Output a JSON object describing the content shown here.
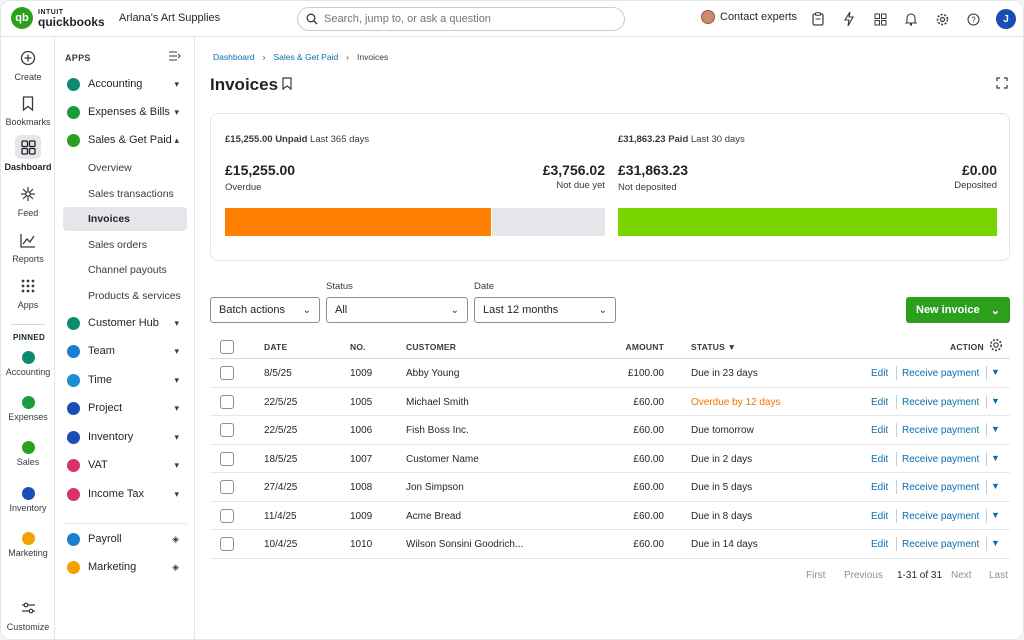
{
  "header": {
    "logo_intuit": "INTUIT",
    "logo_name": "quickbooks",
    "logo_mark": "qb",
    "company": "Arlana's Art Supplies",
    "search_placeholder": "Search, jump to, or ask a question",
    "contact": "Contact experts",
    "user_initial": "J",
    "icons": [
      "clipboard-icon",
      "lightning-icon",
      "apps-icon",
      "bell-icon",
      "gear-icon",
      "help-icon"
    ]
  },
  "rail": {
    "items": [
      {
        "label": "Create",
        "icon": "plus-circle-icon"
      },
      {
        "label": "Bookmarks",
        "icon": "bookmark-icon"
      },
      {
        "label": "Dashboard",
        "icon": "dashboard-icon"
      },
      {
        "label": "Feed",
        "icon": "feed-icon"
      },
      {
        "label": "Reports",
        "icon": "reports-icon"
      },
      {
        "label": "Apps",
        "icon": "apps-grid-icon"
      }
    ],
    "pinned_label": "PINNED",
    "pinned": [
      {
        "label": "Accounting",
        "color": "#0e8a72"
      },
      {
        "label": "Expenses",
        "color": "#1a9c3e"
      },
      {
        "label": "Sales",
        "color": "#2ca01c"
      },
      {
        "label": "Inventory",
        "color": "#1a4eb6"
      },
      {
        "label": "Marketing",
        "color": "#f2a100"
      }
    ],
    "customize": "Customize"
  },
  "appnav": {
    "heading": "APPS",
    "items": [
      {
        "label": "Accounting",
        "color": "#0e8a72"
      },
      {
        "label": "Expenses & Bills",
        "color": "#1a9c3e"
      },
      {
        "label": "Sales & Get Paid",
        "color": "#2ca01c"
      }
    ],
    "sub_items": [
      "Overview",
      "Sales transactions",
      "Invoices",
      "Sales orders",
      "Channel payouts",
      "Products & services"
    ],
    "active_sub": "Invoices",
    "items2": [
      {
        "label": "Customer Hub",
        "color": "#0e8a72"
      },
      {
        "label": "Team",
        "color": "#1a7fd1"
      },
      {
        "label": "Time",
        "color": "#1a8fd1"
      },
      {
        "label": "Project",
        "color": "#1a4eb6"
      },
      {
        "label": "Inventory",
        "color": "#1a4eb6"
      },
      {
        "label": "VAT",
        "color": "#d6336c"
      },
      {
        "label": "Income Tax",
        "color": "#d6336c"
      }
    ],
    "items3": [
      {
        "label": "Payroll",
        "color": "#1a7fd1"
      },
      {
        "label": "Marketing",
        "color": "#f2a100"
      }
    ]
  },
  "main": {
    "breadcrumb": [
      "Dashboard",
      "Sales & Get Paid",
      "Invoices"
    ],
    "title": "Invoices",
    "summary": {
      "unpaid_amount": "£15,255.00",
      "unpaid_label": "Unpaid",
      "unpaid_period": "Last 365 days",
      "overdue_amount": "£15,255.00",
      "overdue_label": "Overdue",
      "notdue_amount": "£3,756.02",
      "notdue_label": "Not due yet",
      "paid_amount": "£31,863.23",
      "paid_label": "Paid",
      "paid_period": "Last 30 days",
      "notdeposited_amount": "£31,863.23",
      "notdeposited_label": "Not deposited",
      "deposited_amount": "£0.00",
      "deposited_label": "Deposited",
      "colors": {
        "overdue": "#ff8000",
        "notdue": "#e4e6ea",
        "paid": "#7ad400"
      }
    },
    "filters": {
      "batch_actions": "Batch actions",
      "status_label": "Status",
      "status_value": "All",
      "date_label": "Date",
      "date_value": "Last 12 months",
      "new_invoice": "New invoice"
    },
    "table": {
      "columns": [
        "DATE",
        "NO.",
        "CUSTOMER",
        "AMOUNT",
        "STATUS",
        "ACTION"
      ],
      "rows": [
        {
          "date": "8/5/25",
          "no": "1009",
          "customer": "Abby Young",
          "amount": "£100.00",
          "status": "Due in 23 days",
          "overdue": false
        },
        {
          "date": "22/5/25",
          "no": "1005",
          "customer": "Michael Smith",
          "amount": "£60.00",
          "status": "Overdue by 12 days",
          "overdue": true
        },
        {
          "date": "22/5/25",
          "no": "1006",
          "customer": "Fish Boss Inc.",
          "amount": "£60.00",
          "status": "Due tomorrow",
          "overdue": false
        },
        {
          "date": "18/5/25",
          "no": "1007",
          "customer": "Customer Name",
          "amount": "£60.00",
          "status": "Due in 2 days",
          "overdue": false
        },
        {
          "date": "27/4/25",
          "no": "1008",
          "customer": "Jon Simpson",
          "amount": "£60.00",
          "status": "Due in 5 days",
          "overdue": false
        },
        {
          "date": "11/4/25",
          "no": "1009",
          "customer": "Acme Bread",
          "amount": "£60.00",
          "status": "Due in 8 days",
          "overdue": false
        },
        {
          "date": "10/4/25",
          "no": "1010",
          "customer": "Wilson Sonsini Goodrich...",
          "amount": "£60.00",
          "status": "Due in 14 days",
          "overdue": false
        }
      ],
      "edit_label": "Edit",
      "receive_label": "Receive payment"
    },
    "pager": {
      "first": "First",
      "previous": "Previous",
      "count": "1-31 of 31",
      "next": "Next",
      "last": "Last"
    }
  }
}
